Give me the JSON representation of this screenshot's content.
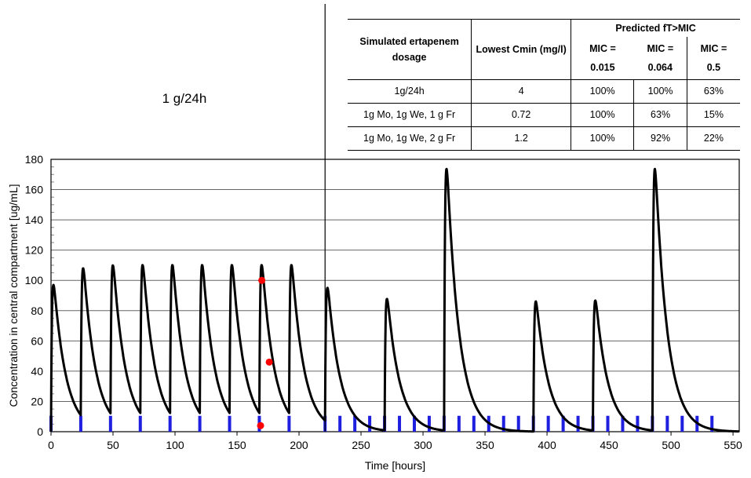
{
  "dose_label": "1 g/24h",
  "table": {
    "col_dosage": "Simulated ertapenem dosage",
    "col_cmin": "Lowest Cmin (mg/l)",
    "col_ftmic": "Predicted fT>MIC",
    "mic_headers": [
      {
        "label": "MIC =",
        "value": "0.015"
      },
      {
        "label": "MIC =",
        "value": "0.064"
      },
      {
        "label": "MIC =",
        "value": "0.5"
      }
    ],
    "rows": [
      {
        "dosage": "1g/24h",
        "cmin": "4",
        "mic1": "100%",
        "mic2": "100%",
        "mic3": "63%"
      },
      {
        "dosage": "1g Mo, 1g We, 1 g Fr",
        "cmin": "0.72",
        "mic1": "100%",
        "mic2": "63%",
        "mic3": "15%"
      },
      {
        "dosage": "1g Mo, 1g We, 2 g Fr",
        "cmin": "1.2",
        "mic1": "100%",
        "mic2": "92%",
        "mic3": "22%"
      }
    ]
  },
  "chart_data": {
    "type": "line",
    "xlabel": "Time [hours]",
    "ylabel": "Concentration in central compartment [ug/mL]",
    "xlim": [
      0,
      555
    ],
    "ylim": [
      0,
      180
    ],
    "x_ticks": [
      "0",
      "50",
      "100",
      "150",
      "200",
      "250",
      "300",
      "350",
      "400",
      "450",
      "500",
      "550"
    ],
    "y_ticks": [
      "0",
      "20",
      "40",
      "60",
      "80",
      "100",
      "120",
      "140",
      "160",
      "180"
    ],
    "grid": true,
    "split_line_x": 221,
    "colors": {
      "curve": "#000000",
      "dose_marker": "#1f1fe0",
      "sample_point": "#ff0000"
    },
    "doses": [
      {
        "t": 0,
        "peak": 97
      },
      {
        "t": 24,
        "peak": 99
      },
      {
        "t": 48,
        "peak": 100
      },
      {
        "t": 72,
        "peak": 100
      },
      {
        "t": 96,
        "peak": 100
      },
      {
        "t": 120,
        "peak": 100
      },
      {
        "t": 144,
        "peak": 100
      },
      {
        "t": 168,
        "peak": 100
      },
      {
        "t": 192,
        "peak": 100
      },
      {
        "t": 221,
        "peak": 89
      },
      {
        "t": 269,
        "peak": 87
      },
      {
        "t": 317,
        "peak": 173
      },
      {
        "t": 389,
        "peak": 86
      },
      {
        "t": 437,
        "peak": 86
      },
      {
        "t": 485,
        "peak": 173
      }
    ],
    "dose_marker_times": [
      0,
      24,
      48,
      72,
      96,
      120,
      144,
      168,
      192,
      221,
      233,
      245,
      257,
      269,
      281,
      293,
      305,
      317,
      329,
      341,
      353,
      365,
      377,
      389,
      401,
      413,
      425,
      437,
      449,
      461,
      473,
      485,
      497,
      509,
      521,
      533
    ],
    "sample_points": [
      {
        "x": 170,
        "y": 100
      },
      {
        "x": 176,
        "y": 46
      },
      {
        "x": 169,
        "y": 4
      }
    ]
  }
}
